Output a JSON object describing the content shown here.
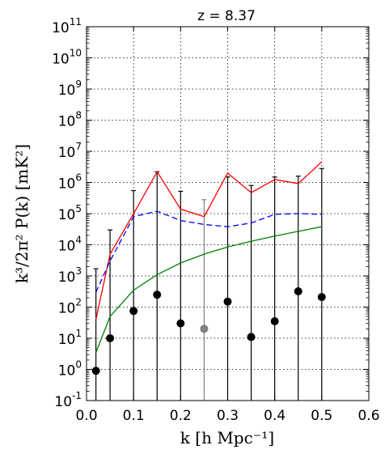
{
  "chart_data": {
    "type": "line",
    "title": "z = 8.37",
    "xlabel": "k [h Mpc⁻¹]",
    "ylabel": "k³/2π² P(k) [mK²]",
    "xlim": [
      0.0,
      0.6
    ],
    "ylim_log10": [
      -1,
      11
    ],
    "yscale": "log",
    "grid": true,
    "x_ticks": [
      "0.0",
      "0.1",
      "0.2",
      "0.3",
      "0.4",
      "0.5",
      "0.6"
    ],
    "y_tick_exponents": [
      "-1",
      "0",
      "1",
      "2",
      "3",
      "4",
      "5",
      "6",
      "7",
      "8",
      "9",
      "10",
      "11"
    ],
    "series": [
      {
        "style": "solid",
        "color": "#ff0000",
        "x": [
          0.02,
          0.05,
          0.1,
          0.15,
          0.2,
          0.25,
          0.3,
          0.35,
          0.4,
          0.45,
          0.5
        ],
        "y": [
          40,
          5000,
          100000,
          2200000,
          140000,
          80000,
          2000000,
          470000,
          1250000,
          920000,
          4600000
        ]
      },
      {
        "style": "dashed",
        "color": "#0000ff",
        "x": [
          0.02,
          0.05,
          0.1,
          0.15,
          0.2,
          0.25,
          0.3,
          0.35,
          0.4,
          0.45,
          0.5
        ],
        "y": [
          300,
          3000,
          80000,
          120000,
          60000,
          45000,
          38000,
          50000,
          95000,
          100000,
          95000
        ]
      },
      {
        "style": "solid",
        "color": "#008000",
        "x": [
          0.02,
          0.05,
          0.1,
          0.15,
          0.2,
          0.25,
          0.3,
          0.35,
          0.4,
          0.45,
          0.5
        ],
        "y": [
          3.5,
          50,
          350,
          1100,
          2600,
          5000,
          8500,
          13000,
          19000,
          27000,
          38000
        ]
      }
    ],
    "points": [
      {
        "x": 0.02,
        "y": 0.9,
        "err_hi": 1700,
        "color": "#000000"
      },
      {
        "x": 0.05,
        "y": 10,
        "err_hi": 30000,
        "color": "#000000"
      },
      {
        "x": 0.1,
        "y": 75,
        "err_hi": 550000,
        "color": "#000000"
      },
      {
        "x": 0.15,
        "y": 250,
        "err_hi": 2200000,
        "color": "#000000"
      },
      {
        "x": 0.2,
        "y": 30,
        "err_hi": 520000,
        "color": "#000000"
      },
      {
        "x": 0.25,
        "y": 20,
        "err_hi": 280000,
        "color": "#808080"
      },
      {
        "x": 0.3,
        "y": 150,
        "err_hi": 1500000,
        "color": "#000000"
      },
      {
        "x": 0.35,
        "y": 11,
        "err_hi": 800000,
        "color": "#000000"
      },
      {
        "x": 0.4,
        "y": 35,
        "err_hi": 1500000,
        "color": "#000000"
      },
      {
        "x": 0.45,
        "y": 320,
        "err_hi": 1600000,
        "color": "#000000"
      },
      {
        "x": 0.5,
        "y": 210,
        "err_hi": 2800000,
        "color": "#000000"
      }
    ]
  }
}
